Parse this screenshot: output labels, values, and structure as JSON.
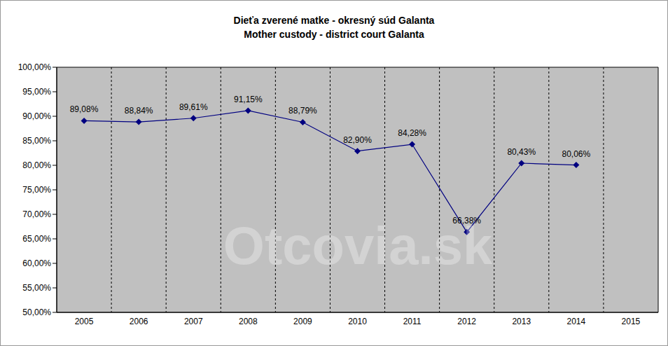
{
  "chart_data": {
    "type": "line",
    "title": "Dieťa zverené matke - okresný súd Galanta",
    "subtitle": "Mother custody - district court Galanta",
    "annotation": "Otcovia.sk",
    "categories": [
      "2005",
      "2006",
      "2007",
      "2008",
      "2009",
      "2010",
      "2011",
      "2012",
      "2013",
      "2014",
      "2015"
    ],
    "values": [
      89.08,
      88.84,
      89.61,
      91.15,
      88.79,
      82.9,
      84.28,
      66.38,
      80.43,
      80.06,
      null
    ],
    "value_labels": [
      "89,08%",
      "88,84%",
      "89,61%",
      "91,15%",
      "88,79%",
      "82,90%",
      "84,28%",
      "66,38%",
      "80,43%",
      "80,06%",
      null
    ],
    "data_labels": true,
    "color": "#000080",
    "marker": "diamond",
    "ylim": [
      50,
      100
    ],
    "yticks": [
      {
        "value": 50,
        "label": "50,00%"
      },
      {
        "value": 55,
        "label": "55,00%"
      },
      {
        "value": 60,
        "label": "60,00%"
      },
      {
        "value": 65,
        "label": "65,00%"
      },
      {
        "value": 70,
        "label": "70,00%"
      },
      {
        "value": 75,
        "label": "75,00%"
      },
      {
        "value": 80,
        "label": "80,00%"
      },
      {
        "value": 85,
        "label": "85,00%"
      },
      {
        "value": 90,
        "label": "90,00%"
      },
      {
        "value": 95,
        "label": "95,00%"
      },
      {
        "value": 100,
        "label": "100,00%"
      }
    ],
    "grid": true
  }
}
